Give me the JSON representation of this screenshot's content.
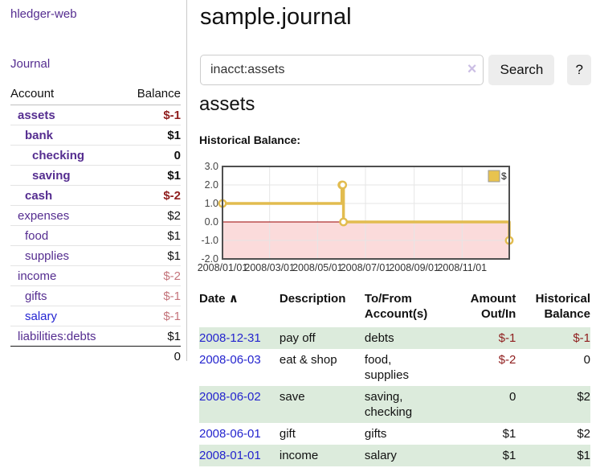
{
  "app": {
    "brand": "hledger-web"
  },
  "sidebar": {
    "journal_link": "Journal",
    "accounts": {
      "col_account": "Account",
      "col_balance": "Balance",
      "rows": [
        {
          "name": "assets",
          "balance": "$-1"
        },
        {
          "name": "bank",
          "balance": "$1"
        },
        {
          "name": "checking",
          "balance": "0"
        },
        {
          "name": "saving",
          "balance": "$1"
        },
        {
          "name": "cash",
          "balance": "$-2"
        },
        {
          "name": "expenses",
          "balance": "$2"
        },
        {
          "name": "food",
          "balance": "$1"
        },
        {
          "name": "supplies",
          "balance": "$1"
        },
        {
          "name": "income",
          "balance": "$-2"
        },
        {
          "name": "gifts",
          "balance": "$-1"
        },
        {
          "name": "salary",
          "balance": "$-1"
        },
        {
          "name": "liabilities:debts",
          "balance": "$1"
        }
      ],
      "total": "0"
    }
  },
  "header": {
    "title": "sample.journal"
  },
  "search": {
    "value": "inacct:assets",
    "clear_icon": "×",
    "button_label": "Search",
    "help_label": "?"
  },
  "account_page": {
    "heading": "assets",
    "chart_label": "Historical Balance:"
  },
  "chart_data": {
    "type": "line",
    "step": true,
    "title": "Historical Balance:",
    "series": [
      {
        "name": "$",
        "color": "#E2BC4F",
        "points": [
          [
            "2008-01-01",
            1
          ],
          [
            "2008-06-01",
            2
          ],
          [
            "2008-06-02",
            2
          ],
          [
            "2008-06-03",
            0
          ],
          [
            "2008-12-31",
            -1
          ]
        ]
      }
    ],
    "xlim": [
      "2008-01-01",
      "2008-12-31"
    ],
    "ylim": [
      -2,
      3
    ],
    "x_ticks": [
      "2008/01/01",
      "2008/03/01",
      "2008/05/01",
      "2008/07/01",
      "2008/09/01",
      "2008/11/01"
    ],
    "y_ticks": [
      "3.0",
      "2.0",
      "1.0",
      "0.0",
      "-1.0",
      "-2.0"
    ],
    "grid": true,
    "negative_region_color": "#FBDBDB",
    "zero_line_color": "#990000",
    "grid_color": "#E6E6E6",
    "border_color": "#4F4F4F",
    "legend": {
      "label": "$",
      "swatch_color": "#E8C34E",
      "position": "top-right"
    }
  },
  "register": {
    "columns": {
      "date": "Date",
      "description": "Description",
      "account": "To/From Account(s)",
      "amount": "Amount Out/In",
      "balance": "Historical Balance"
    },
    "sort_icon": "∧",
    "rows": [
      {
        "date": "2008-12-31",
        "description": "pay off",
        "accounts": "debts",
        "amount": "$-1",
        "balance": "$-1"
      },
      {
        "date": "2008-06-03",
        "description": "eat & shop",
        "accounts": "food, supplies",
        "amount": "$-2",
        "balance": "0"
      },
      {
        "date": "2008-06-02",
        "description": "save",
        "accounts": "saving, checking",
        "amount": "0",
        "balance": "$2"
      },
      {
        "date": "2008-06-01",
        "description": "gift",
        "accounts": "gifts",
        "amount": "$1",
        "balance": "$2"
      },
      {
        "date": "2008-01-01",
        "description": "income",
        "accounts": "salary",
        "amount": "$1",
        "balance": "$1"
      }
    ]
  }
}
